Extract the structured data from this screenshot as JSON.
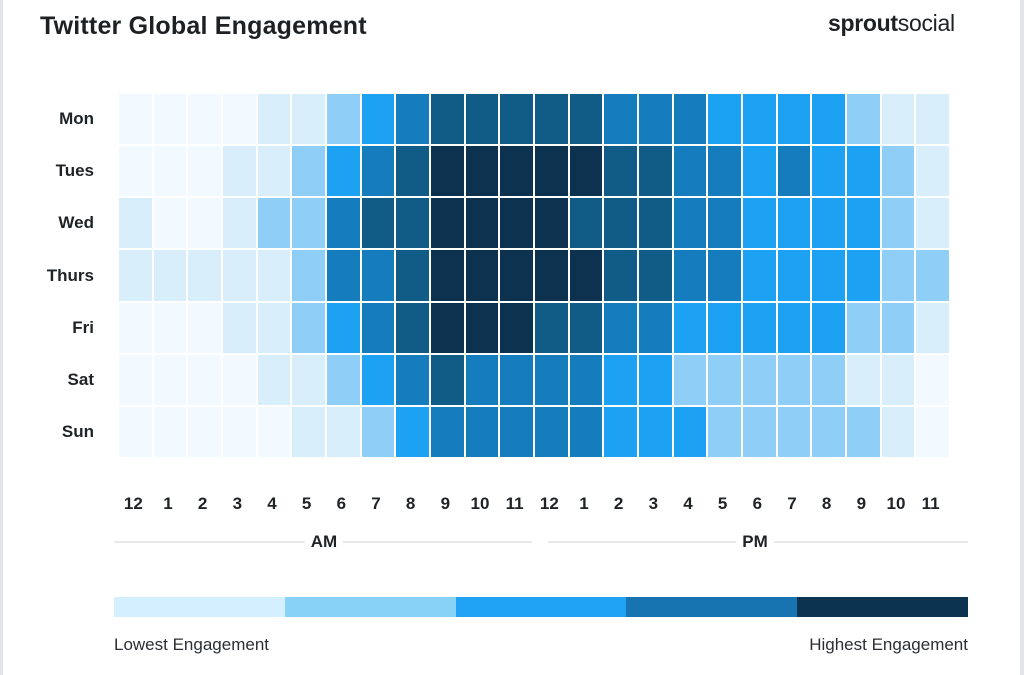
{
  "header": {
    "title": "Twitter Global Engagement",
    "logo_bold": "sprout",
    "logo_light": "social"
  },
  "chart_data": {
    "type": "heatmap",
    "title": "Twitter Global Engagement",
    "rows": [
      "Mon",
      "Tues",
      "Wed",
      "Thurs",
      "Fri",
      "Sat",
      "Sun"
    ],
    "columns": [
      "12",
      "1",
      "2",
      "3",
      "4",
      "5",
      "6",
      "7",
      "8",
      "9",
      "10",
      "11",
      "12",
      "1",
      "2",
      "3",
      "4",
      "5",
      "6",
      "7",
      "8",
      "9",
      "10",
      "11"
    ],
    "periods": [
      "AM",
      "PM"
    ],
    "scale": "engagement level 0 (lowest) to 6 (highest)",
    "values": [
      [
        0,
        0,
        0,
        0,
        1,
        1,
        2,
        3,
        4,
        5,
        5,
        5,
        5,
        5,
        4,
        4,
        4,
        3,
        3,
        3,
        3,
        2,
        1,
        1
      ],
      [
        0,
        0,
        0,
        1,
        1,
        2,
        3,
        4,
        5,
        6,
        6,
        6,
        6,
        6,
        5,
        5,
        4,
        4,
        3,
        4,
        3,
        3,
        2,
        1
      ],
      [
        1,
        0,
        0,
        1,
        2,
        2,
        4,
        5,
        5,
        6,
        6,
        6,
        6,
        5,
        5,
        5,
        4,
        4,
        3,
        3,
        3,
        3,
        2,
        1
      ],
      [
        1,
        1,
        1,
        1,
        1,
        2,
        4,
        4,
        5,
        6,
        6,
        6,
        6,
        6,
        5,
        5,
        4,
        4,
        3,
        3,
        3,
        3,
        2,
        2
      ],
      [
        0,
        0,
        0,
        1,
        1,
        2,
        3,
        4,
        5,
        6,
        6,
        6,
        5,
        5,
        4,
        4,
        3,
        3,
        3,
        3,
        3,
        2,
        2,
        1
      ],
      [
        0,
        0,
        0,
        0,
        1,
        1,
        2,
        3,
        4,
        5,
        4,
        4,
        4,
        4,
        3,
        3,
        2,
        2,
        2,
        2,
        2,
        1,
        1,
        0
      ],
      [
        0,
        0,
        0,
        0,
        0,
        1,
        1,
        2,
        3,
        4,
        4,
        4,
        4,
        4,
        3,
        3,
        3,
        2,
        2,
        2,
        2,
        2,
        1,
        0
      ]
    ],
    "level_colors": [
      "#f2faff",
      "#d9eefb",
      "#8fcff7",
      "#1da1f2",
      "#157dbd",
      "#115b87",
      "#0c324f"
    ],
    "legend": {
      "low_label": "Lowest Engagement",
      "high_label": "Highest Engagement",
      "colors": [
        "#d4effd",
        "#88d1f7",
        "#1fa2f1",
        "#1874b0",
        "#0c3350"
      ]
    }
  }
}
